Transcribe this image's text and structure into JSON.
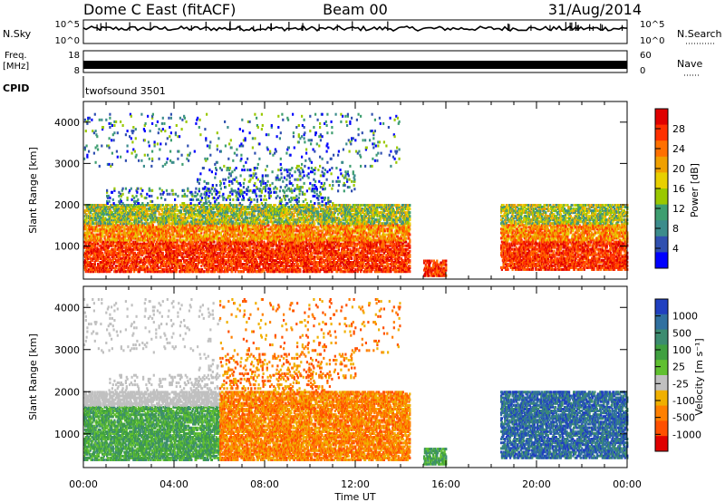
{
  "header": {
    "radar": "Dome C East (fitACF)",
    "beam": "Beam 00",
    "date": "31/Aug/2014"
  },
  "strips": {
    "nsky_label": "N.Sky",
    "nsky_ticks": [
      "10^5",
      "10^0"
    ],
    "nsearch_label": "N.Search",
    "nsearch_ticks": [
      "10^5",
      "10^0"
    ],
    "freq_label_1": "Freq.",
    "freq_label_2": "[MHz]",
    "freq_ticks": [
      "18",
      "8"
    ],
    "nave_label": "Nave",
    "nave_ticks": [
      "60",
      "0"
    ],
    "cpid_label": "CPID",
    "cpid_value": "twofsound 3501"
  },
  "chart_data": [
    {
      "type": "heatmap",
      "name": "power",
      "ylabel": "Slant Range [km]",
      "yticks": [
        1000,
        2000,
        3000,
        4000
      ],
      "ylim": [
        200,
        4500
      ],
      "xticks": [
        "00:00",
        "04:00",
        "08:00",
        "12:00",
        "16:00",
        "20:00",
        "00:00"
      ],
      "xlim_hours": [
        0,
        24
      ],
      "colorbar": {
        "label": "Power [dB]",
        "ticks": [
          "28",
          "24",
          "20",
          "16",
          "12",
          "8",
          "4"
        ],
        "colors": [
          "#e00000",
          "#ff3000",
          "#ff7000",
          "#f0a000",
          "#e8d000",
          "#9ac800",
          "#3e9e70",
          "#3c8c8c",
          "#3050b0",
          "#0000ff"
        ]
      }
    },
    {
      "type": "heatmap",
      "name": "velocity",
      "ylabel": "Slant Range [km]",
      "yticks": [
        1000,
        2000,
        3000,
        4000
      ],
      "ylim": [
        200,
        4500
      ],
      "xticks": [
        "00:00",
        "04:00",
        "08:00",
        "12:00",
        "16:00",
        "20:00",
        "00:00"
      ],
      "xlabel": "Time UT",
      "colorbar": {
        "label": "Velocity [m s⁻¹]",
        "ticks": [
          "1000",
          "500",
          "100",
          "25",
          "-25",
          "-100",
          "-500",
          "-1000"
        ],
        "colors": [
          "#2040c0",
          "#3070a0",
          "#3c8c70",
          "#40a040",
          "#60c030",
          "#c0c0c0",
          "#f0b000",
          "#ff8000",
          "#ff5000",
          "#e00000"
        ]
      }
    }
  ]
}
